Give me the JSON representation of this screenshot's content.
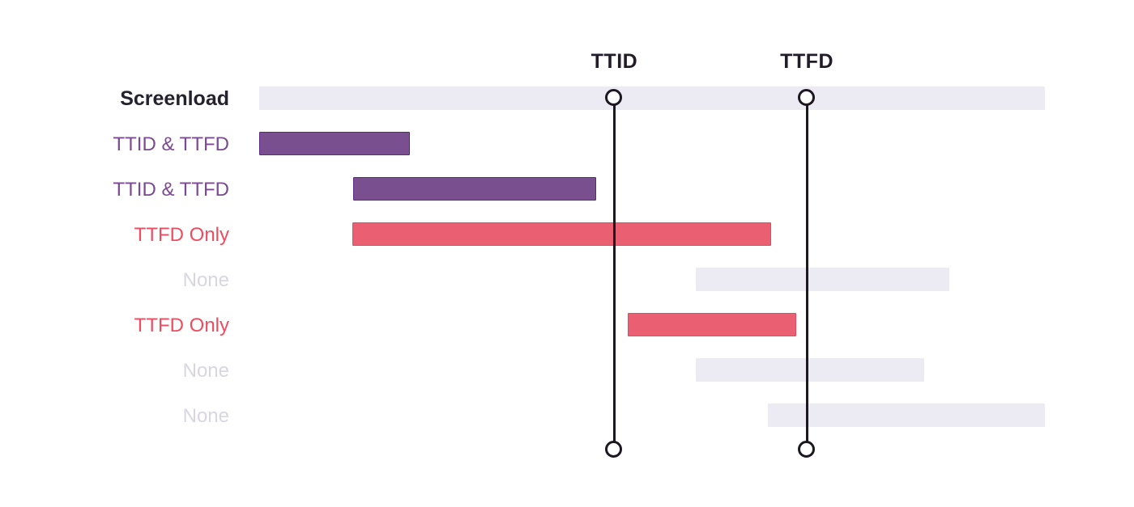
{
  "title": "Screenload TTID / TTFD span timeline diagram",
  "chart_data": {
    "type": "bar",
    "orientation": "horizontal-gantt-timeline",
    "axis": "implicit time axis, 0-100% of the screenload duration, no ticks or gridlines",
    "rows": [
      {
        "label": "Screenload",
        "kind": "screenload",
        "start_pct": 0,
        "end_pct": 100
      },
      {
        "label": "TTID & TTFD",
        "kind": "both",
        "start_pct": 0,
        "end_pct": 19.2
      },
      {
        "label": "TTID & TTFD",
        "kind": "both",
        "start_pct": 12.0,
        "end_pct": 42.9
      },
      {
        "label": "TTFD Only",
        "kind": "ttfd",
        "start_pct": 11.9,
        "end_pct": 65.2
      },
      {
        "label": "None",
        "kind": "none",
        "start_pct": 55.6,
        "end_pct": 87.8
      },
      {
        "label": "TTFD Only",
        "kind": "ttfd",
        "start_pct": 46.9,
        "end_pct": 68.4
      },
      {
        "label": "None",
        "kind": "none",
        "start_pct": 55.6,
        "end_pct": 84.6
      },
      {
        "label": "None",
        "kind": "none",
        "start_pct": 64.7,
        "end_pct": 100
      }
    ],
    "markers": [
      {
        "label": "TTID",
        "x_pct": 45.2
      },
      {
        "label": "TTFD",
        "x_pct": 69.7
      }
    ]
  },
  "colors": {
    "background": "#ffffff",
    "bar_light": "#eceaf2",
    "bar_purple": "#7a4f8f",
    "bar_purple_border": "#5e2688",
    "bar_red": "#eb5f72",
    "bar_red_border": "#e84760",
    "label_screenload": "#25222e",
    "label_purple": "#7b4a92",
    "label_red": "#ef4d5f",
    "label_none": "#d9d5e1",
    "marker_line": "#1d1722",
    "marker_label": "#211c28"
  }
}
